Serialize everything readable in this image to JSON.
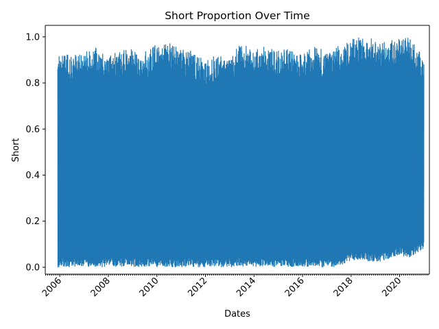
{
  "chart_data": {
    "type": "line",
    "title": "Short Proportion Over Time",
    "xlabel": "Dates",
    "ylabel": "Short",
    "x_axis": "date",
    "xlim": [
      "2005-05-27",
      "2021-03-24"
    ],
    "ylim": [
      -0.03,
      1.05
    ],
    "x_ticks": [
      "2006",
      "2008",
      "2010",
      "2012",
      "2014",
      "2016",
      "2018",
      "2020"
    ],
    "y_ticks": [
      "0.0",
      "0.2",
      "0.4",
      "0.6",
      "0.8",
      "1.0"
    ],
    "grid": false,
    "legend": "none",
    "series": [
      {
        "color": "#1f77b4",
        "style": "dense daily oscillation between a low envelope and a high envelope",
        "date_range": [
          "2005-12-01",
          "2020-12-31"
        ],
        "high_envelope": {
          "x": [
            "2005-12-01",
            "2006-03-01",
            "2006-06-01",
            "2007-01-01",
            "2007-06-01",
            "2008-01-01",
            "2008-06-01",
            "2009-01-01",
            "2009-06-01",
            "2010-01-01",
            "2010-06-01",
            "2011-01-01",
            "2011-06-01",
            "2012-01-01",
            "2012-06-01",
            "2013-01-01",
            "2013-06-01",
            "2014-01-01",
            "2014-06-01",
            "2015-01-01",
            "2015-06-01",
            "2016-01-01",
            "2016-06-01",
            "2017-01-01",
            "2017-06-01",
            "2018-01-01",
            "2018-06-01",
            "2019-01-01",
            "2019-06-01",
            "2020-01-01",
            "2020-06-01",
            "2020-12-31"
          ],
          "y": [
            0.91,
            0.95,
            0.92,
            0.93,
            0.96,
            0.92,
            0.94,
            0.95,
            0.93,
            0.97,
            0.98,
            0.95,
            0.94,
            0.9,
            0.93,
            0.91,
            0.97,
            0.95,
            0.96,
            0.94,
            0.95,
            0.92,
            0.96,
            0.94,
            0.96,
            0.99,
            1.0,
            0.99,
            0.98,
            1.0,
            1.0,
            0.92
          ]
        },
        "low_envelope": {
          "x": [
            "2005-12-01",
            "2017-06-01",
            "2018-01-01",
            "2018-06-01",
            "2019-01-01",
            "2019-06-01",
            "2020-01-01",
            "2020-06-01",
            "2020-12-31"
          ],
          "y": [
            0.0,
            0.0,
            0.03,
            0.03,
            0.02,
            0.03,
            0.05,
            0.04,
            0.08
          ]
        }
      }
    ]
  }
}
